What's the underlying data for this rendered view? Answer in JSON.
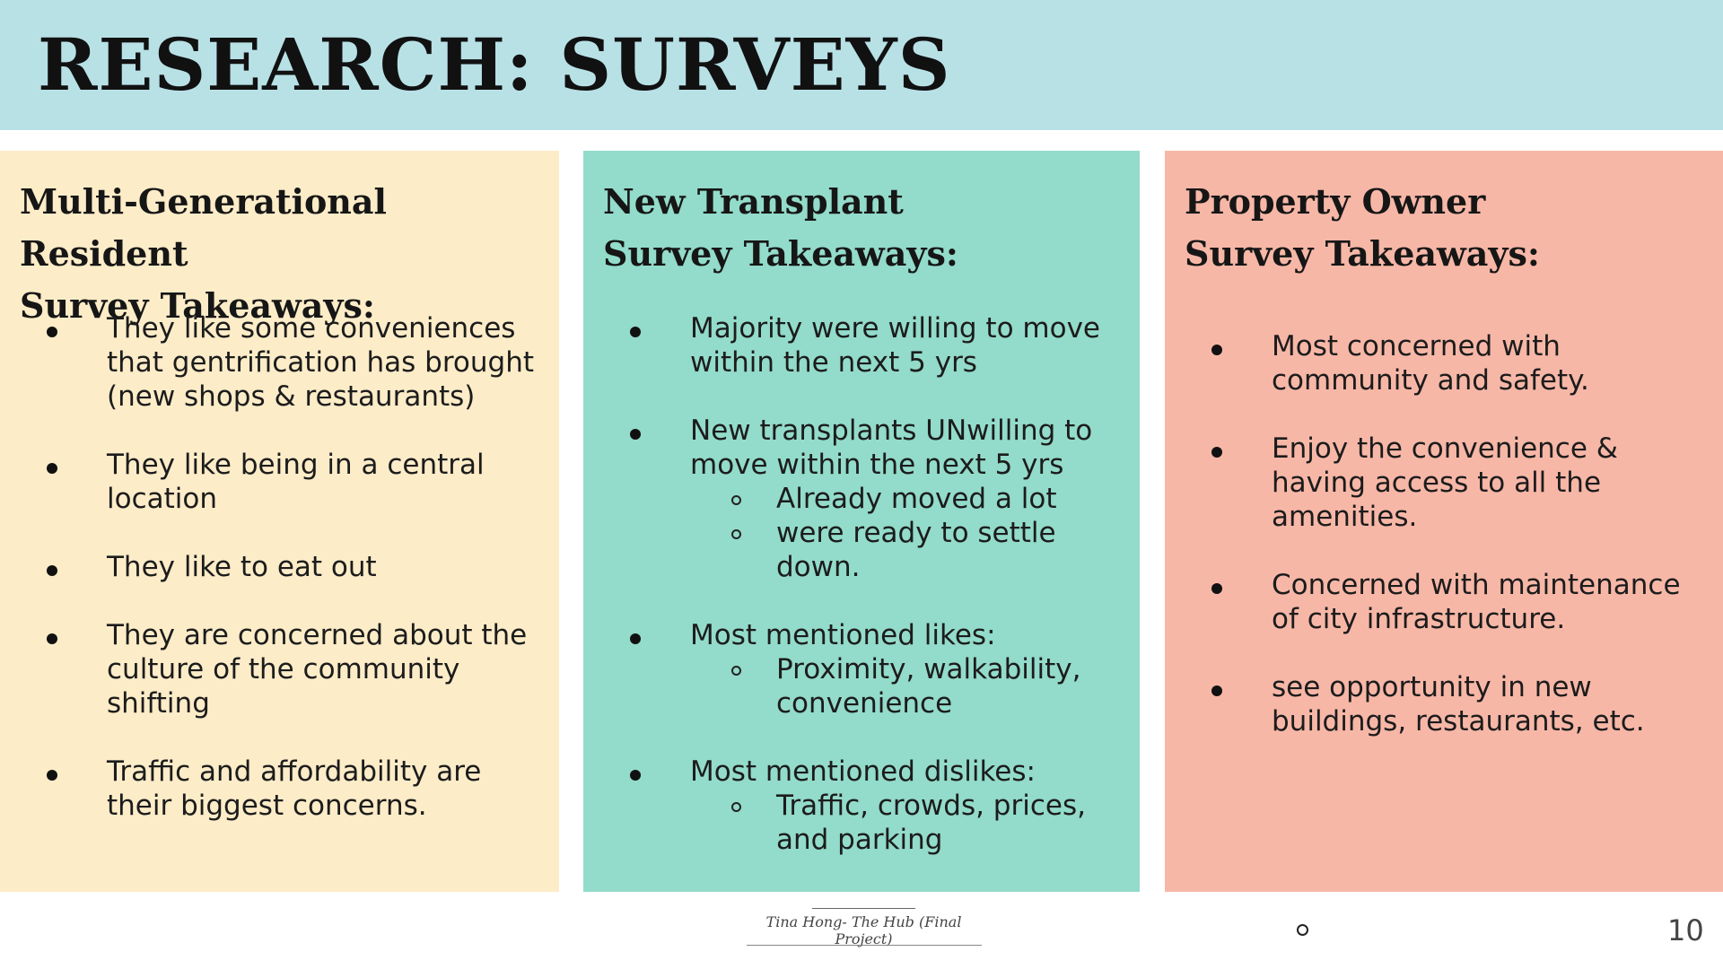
{
  "title": "RESEARCH: SURVEYS",
  "panels": [
    {
      "heading_line1": "Multi-Generational Resident",
      "heading_line2": "Survey Takeaways:",
      "items": [
        {
          "text": "They like some conveniences that gentrification has brought (new shops & restaurants)"
        },
        {
          "text": "They like being in a central location"
        },
        {
          "text": "They like to eat out"
        },
        {
          "text": "They are concerned about the culture of the community shifting"
        },
        {
          "text": "Traffic and affordability are their biggest concerns."
        }
      ]
    },
    {
      "heading_line1": "New Transplant",
      "heading_line2": "Survey Takeaways:",
      "items": [
        {
          "text": "Majority were willing to move within the next 5 yrs"
        },
        {
          "text": "New transplants UNwilling to move within the next 5 yrs",
          "sub": [
            "Already moved a lot",
            "were ready to settle down."
          ]
        },
        {
          "text": "Most mentioned likes:",
          "sub": [
            "Proximity, walkability, convenience"
          ]
        },
        {
          "text": "Most mentioned dislikes:",
          "sub": [
            "Traffic, crowds, prices, and parking"
          ]
        }
      ]
    },
    {
      "heading_line1": "Property Owner",
      "heading_line2": "Survey Takeaways:",
      "items": [
        {
          "text": "Most concerned with community and safety."
        },
        {
          "text": "Enjoy the convenience & having access to all the amenities."
        },
        {
          "text": "Concerned  with maintenance of city infrastructure."
        },
        {
          "text": "see opportunity in new buildings, restaurants, etc."
        }
      ]
    }
  ],
  "footer": {
    "text": "Tina Hong- The Hub (Final Project)",
    "page_number": "10"
  }
}
